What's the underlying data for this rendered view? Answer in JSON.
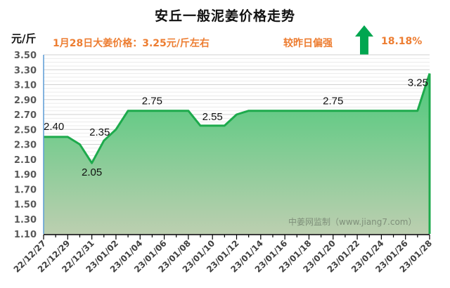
{
  "header": {
    "title": "安丘一般泥姜价格走势",
    "unit": "元/斤",
    "price_note": "1月28日大姜价格：3.25元/斤左右",
    "compare_label": "较昨日偏强",
    "trend_icon": "arrow-up-icon",
    "change_pct": "18.18%"
  },
  "colors": {
    "title": "#111111",
    "accent_orange": "#ED7D31",
    "arrow_green": "#00A650",
    "line_green": "#1DAA4C",
    "fill_top": "#4CC97A",
    "fill_bottom": "#BCCFB0",
    "y_axis_line": "#5B9BD5",
    "grid_major": "#D0D0D0",
    "grid_minor": "#EBEBEB"
  },
  "watermark": "中姜网监制（www.jiang7.com）",
  "chart_data": {
    "type": "area",
    "title": "安丘一般泥姜价格走势",
    "xlabel": "",
    "ylabel": "元/斤",
    "ylim": [
      1.1,
      3.5
    ],
    "yticks": [
      "3.50",
      "3.30",
      "3.10",
      "2.90",
      "2.70",
      "2.50",
      "2.30",
      "2.10",
      "1.90",
      "1.70",
      "1.50",
      "1.30",
      "1.10"
    ],
    "grid": true,
    "legend": "none",
    "x": [
      "22/12/27",
      "22/12/28",
      "22/12/29",
      "22/12/30",
      "22/12/31",
      "23/01/01",
      "23/01/02",
      "23/01/03",
      "23/01/04",
      "23/01/05",
      "23/01/06",
      "23/01/07",
      "23/01/08",
      "23/01/09",
      "23/01/10",
      "23/01/11",
      "23/01/12",
      "23/01/13",
      "23/01/14",
      "23/01/15",
      "23/01/16",
      "23/01/17",
      "23/01/18",
      "23/01/19",
      "23/01/20",
      "23/01/21",
      "23/01/22",
      "23/01/23",
      "23/01/24",
      "23/01/25",
      "23/01/26",
      "23/01/27",
      "23/01/28"
    ],
    "xtick_labels": [
      "22/12/27",
      "22/12/29",
      "22/12/31",
      "23/01/02",
      "23/01/04",
      "23/01/06",
      "23/01/08",
      "23/01/10",
      "23/01/12",
      "23/01/14",
      "23/01/16",
      "23/01/18",
      "23/01/20",
      "23/01/22",
      "23/01/24",
      "23/01/26",
      "23/01/28"
    ],
    "series": [
      {
        "name": "安丘一般泥姜价格",
        "values": [
          2.4,
          2.4,
          2.4,
          2.3,
          2.05,
          2.35,
          2.5,
          2.75,
          2.75,
          2.75,
          2.75,
          2.75,
          2.75,
          2.55,
          2.55,
          2.55,
          2.7,
          2.75,
          2.75,
          2.75,
          2.75,
          2.75,
          2.75,
          2.75,
          2.75,
          2.75,
          2.75,
          2.75,
          2.75,
          2.75,
          2.75,
          2.75,
          3.25
        ]
      }
    ],
    "annotations": [
      {
        "x": "22/12/27",
        "label": "2.40"
      },
      {
        "x": "22/12/31",
        "label": "2.05"
      },
      {
        "x": "23/01/01",
        "label": "2.35"
      },
      {
        "x": "23/01/05",
        "label": "2.75"
      },
      {
        "x": "23/01/10",
        "label": "2.55"
      },
      {
        "x": "23/01/20",
        "label": "2.75"
      },
      {
        "x": "23/01/28",
        "label": "3.25"
      }
    ]
  }
}
